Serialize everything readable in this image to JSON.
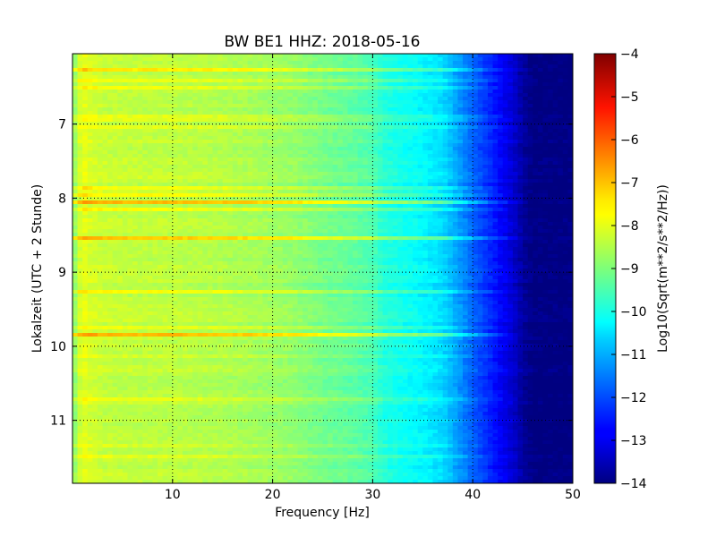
{
  "chart_data": {
    "type": "heatmap",
    "title": "BW BE1 HHZ: 2018-05-16",
    "xlabel": "Frequency [Hz]",
    "ylabel": "Lokalzeit (UTC + 2 Stunde)",
    "xlim": [
      0,
      50
    ],
    "ylim": [
      11.85,
      6.05
    ],
    "y_inverted": true,
    "grid": true,
    "grid_style": "dotted",
    "x_ticks": [
      10,
      20,
      30,
      40,
      50
    ],
    "y_ticks": [
      7,
      8,
      9,
      10,
      11
    ],
    "colormap": "jet",
    "colorbar": {
      "label": "Log10(Sqrt(m**2/s**2/Hz))",
      "range": [
        -14,
        -4
      ],
      "ticks": [
        -4,
        -5,
        -6,
        -7,
        -8,
        -9,
        -10,
        -11,
        -12,
        -13,
        -14
      ]
    },
    "frequency_profile": {
      "frequencies": [
        0,
        0.5,
        1,
        1.5,
        3,
        5,
        10,
        15,
        20,
        22,
        25,
        28,
        30,
        31,
        33,
        35,
        37,
        38,
        40,
        42,
        44,
        45,
        46,
        50
      ],
      "values": [
        -9.0,
        -8.5,
        -7.9,
        -8.1,
        -8.3,
        -8.35,
        -8.4,
        -8.5,
        -8.7,
        -8.8,
        -9.1,
        -9.3,
        -9.5,
        -9.9,
        -10.1,
        -10.3,
        -10.6,
        -11.0,
        -11.8,
        -12.5,
        -13.2,
        -13.7,
        -14.0,
        -14.0
      ]
    },
    "bands": [
      {
        "time": 6.26,
        "offset": 0.9
      },
      {
        "time": 6.4,
        "offset": 0.6
      },
      {
        "time": 6.5,
        "offset": 0.7
      },
      {
        "time": 6.92,
        "offset": 1.0
      },
      {
        "time": 7.05,
        "offset": 0.4
      },
      {
        "time": 7.7,
        "offset": 0.5
      },
      {
        "time": 7.88,
        "offset": 1.2
      },
      {
        "time": 7.97,
        "offset": 0.8
      },
      {
        "time": 8.06,
        "offset": 1.4
      },
      {
        "time": 8.16,
        "offset": 0.8
      },
      {
        "time": 8.55,
        "offset": 1.5
      },
      {
        "time": 9.25,
        "offset": 0.8
      },
      {
        "time": 9.74,
        "offset": 0.6
      },
      {
        "time": 9.84,
        "offset": 1.5
      },
      {
        "time": 10.15,
        "offset": 0.5
      },
      {
        "time": 10.73,
        "offset": 0.8
      },
      {
        "time": 11.33,
        "offset": 0.5
      },
      {
        "time": 11.5,
        "offset": 0.4
      }
    ]
  }
}
